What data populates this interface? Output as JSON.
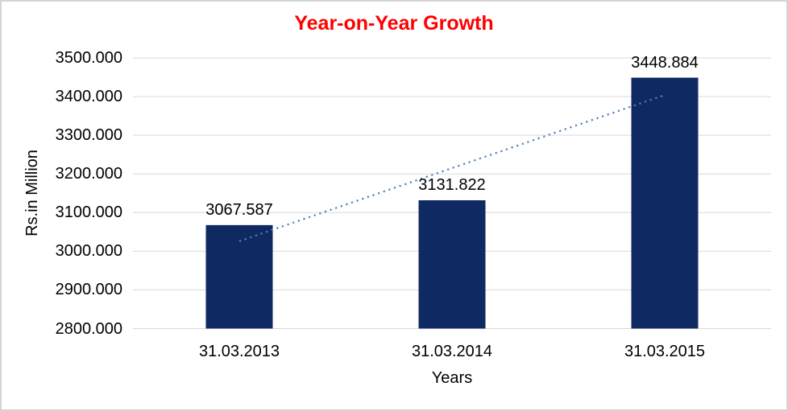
{
  "chart_data": {
    "type": "bar",
    "title": "Year-on-Year Growth",
    "xlabel": "Years",
    "ylabel": "Rs.in Million",
    "categories": [
      "31.03.2013",
      "31.03.2014",
      "31.03.2015"
    ],
    "values": [
      3067.587,
      3131.822,
      3448.884
    ],
    "data_labels": [
      "3067.587",
      "3131.822",
      "3448.884"
    ],
    "y_ticks": [
      {
        "value": 3500,
        "label": "3500.000"
      },
      {
        "value": 3400,
        "label": "3400.000"
      },
      {
        "value": 3300,
        "label": "3300.000"
      },
      {
        "value": 3200,
        "label": "3200.000"
      },
      {
        "value": 3100,
        "label": "3100.000"
      },
      {
        "value": 3000,
        "label": "3000.000"
      },
      {
        "value": 2900,
        "label": "2900.000"
      },
      {
        "value": 2800,
        "label": "2800.000"
      }
    ],
    "ylim": [
      2800,
      3500
    ],
    "grid": true,
    "legend_position": "none",
    "trendline": {
      "type": "linear",
      "style": "dotted",
      "start_value": 3026,
      "end_value": 3404
    },
    "colors": {
      "bar": "#0F2A63",
      "trendline": "#4F81BD",
      "gridline": "#D9D9D9",
      "axis_line": "#D9D9D9",
      "title": "#FF0000",
      "text": "#000000",
      "frame": "#D3D3D3",
      "background": "#FFFFFF"
    }
  }
}
